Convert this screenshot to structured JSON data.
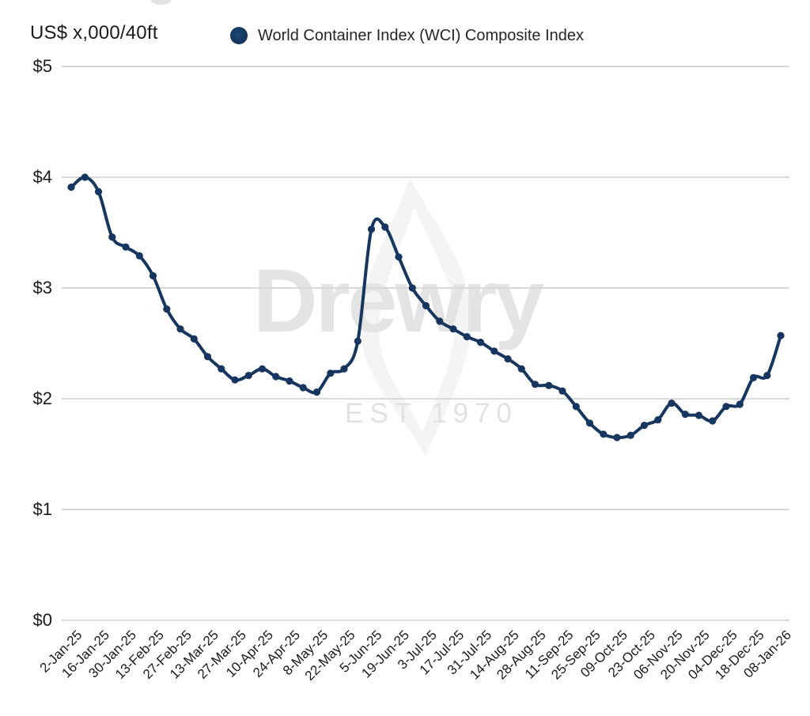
{
  "header": {
    "unit_label": "US$ x,000/40ft",
    "legend": {
      "label": "World Container Index (WCI) Composite Index",
      "marker_color": "#14365f",
      "marker_shape": "circle"
    }
  },
  "watermark": {
    "name": "Drewry",
    "est": "EST 1970"
  },
  "chart_data": {
    "type": "line",
    "title": "World Container Index (WCI) Composite Index",
    "ylabel": "US$ x,000/40ft",
    "xlabel": "",
    "ylim": [
      0,
      5
    ],
    "y_tick_values": [
      5,
      4,
      3,
      2,
      1,
      0
    ],
    "y_tick_labels": [
      "$5",
      "$4",
      "$3",
      "$2",
      "$1",
      "$0"
    ],
    "y_tick_prefix": "$",
    "grid": "horizontal",
    "grid_color": "#d9d9d9",
    "background": "#ffffff",
    "legend_position": "top",
    "x_tick_rotation": -45,
    "x_tick_labels": [
      "2-Jan-25",
      "16-Jan-25",
      "30-Jan-25",
      "13-Feb-25",
      "27-Feb-25",
      "13-Mar-25",
      "27-Mar-25",
      "10-Apr-25",
      "24-Apr-25",
      "8-May-25",
      "22-May-25",
      "5-Jun-25",
      "19-Jun-25",
      "3-Jul-25",
      "17-Jul-25",
      "31-Jul-25",
      "14-Aug-25",
      "28-Aug-25",
      "11-Sep-25",
      "25-Sep-25",
      "09-Oct-25",
      "23-Oct-25",
      "06-Nov-25",
      "20-Nov-25",
      "04-Dec-25",
      "18-Dec-25",
      "08-Jan-26"
    ],
    "series": [
      {
        "name": "World Container Index (WCI) Composite Index",
        "color": "#16365f",
        "marker": "circle",
        "dates": [
          "2-Jan-25",
          "9-Jan-25",
          "16-Jan-25",
          "23-Jan-25",
          "30-Jan-25",
          "6-Feb-25",
          "13-Feb-25",
          "20-Feb-25",
          "27-Feb-25",
          "6-Mar-25",
          "13-Mar-25",
          "20-Mar-25",
          "27-Mar-25",
          "3-Apr-25",
          "10-Apr-25",
          "17-Apr-25",
          "24-Apr-25",
          "1-May-25",
          "8-May-25",
          "15-May-25",
          "22-May-25",
          "29-May-25",
          "5-Jun-25",
          "12-Jun-25",
          "19-Jun-25",
          "26-Jun-25",
          "3-Jul-25",
          "10-Jul-25",
          "17-Jul-25",
          "24-Jul-25",
          "31-Jul-25",
          "7-Aug-25",
          "14-Aug-25",
          "21-Aug-25",
          "28-Aug-25",
          "4-Sep-25",
          "11-Sep-25",
          "18-Sep-25",
          "25-Sep-25",
          "2-Oct-25",
          "09-Oct-25",
          "16-Oct-25",
          "23-Oct-25",
          "30-Oct-25",
          "06-Nov-25",
          "13-Nov-25",
          "20-Nov-25",
          "27-Nov-25",
          "04-Dec-25",
          "11-Dec-25",
          "18-Dec-25",
          "01-Jan-26",
          "08-Jan-26"
        ],
        "values": [
          3.91,
          4.0,
          3.87,
          3.46,
          3.37,
          3.29,
          3.11,
          2.81,
          2.63,
          2.54,
          2.38,
          2.27,
          2.17,
          2.21,
          2.27,
          2.2,
          2.16,
          2.1,
          2.06,
          2.23,
          2.27,
          2.52,
          3.53,
          3.55,
          3.28,
          3.0,
          2.84,
          2.7,
          2.63,
          2.56,
          2.51,
          2.43,
          2.36,
          2.27,
          2.13,
          2.12,
          2.07,
          1.93,
          1.78,
          1.68,
          1.65,
          1.67,
          1.76,
          1.81,
          1.96,
          1.86,
          1.85,
          1.8,
          1.93,
          1.95,
          2.19,
          2.21,
          2.57
        ]
      }
    ]
  }
}
